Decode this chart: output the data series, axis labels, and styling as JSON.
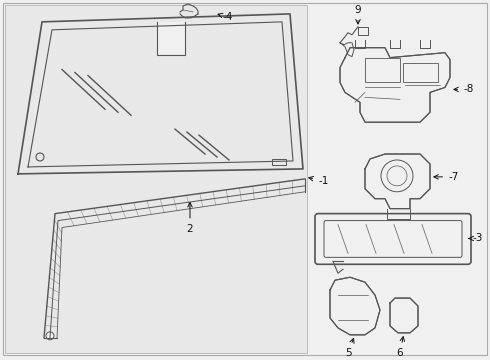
{
  "background_color": "#f0f0f0",
  "line_color": "#555555",
  "text_color": "#111111",
  "white": "#ffffff"
}
